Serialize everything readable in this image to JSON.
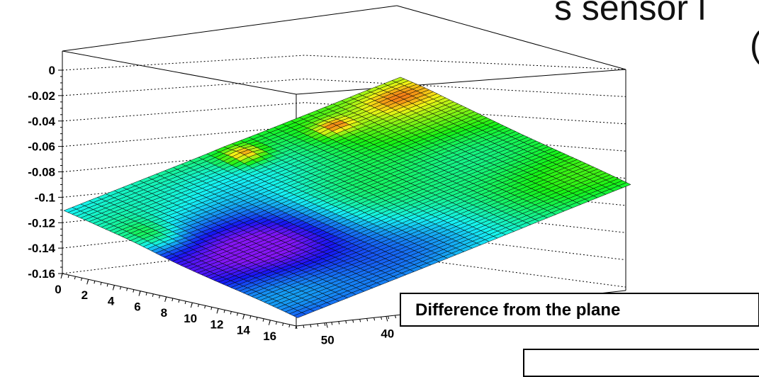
{
  "page": {
    "heading_line1": "s sensor l",
    "heading_line2": "("
  },
  "chart_data": {
    "type": "surface",
    "title": "Difference from the plane",
    "z_ticks": [
      "0",
      "-0.02",
      "-0.04",
      "-0.06",
      "-0.08",
      "-0.1",
      "-0.12",
      "-0.14",
      "-0.16"
    ],
    "zlim": [
      -0.16,
      0
    ],
    "x_ticks": [
      "0",
      "2",
      "4",
      "6",
      "8",
      "10",
      "12",
      "14",
      "16"
    ],
    "xlim": [
      0,
      18
    ],
    "y_ticks": [
      "50",
      "40"
    ],
    "ylim": [
      0,
      55
    ],
    "z_min": -0.16,
    "z_max": 0.0,
    "grid_z_dotted": true,
    "colormap": "rainbow (violet low → red high)",
    "colors": {
      "low": "#5a20d0",
      "mid_low": "#20a0e8",
      "mid": "#40e0a0",
      "mid_high": "#90e020",
      "high": "#e83010",
      "mesh_line": "#000000"
    }
  }
}
